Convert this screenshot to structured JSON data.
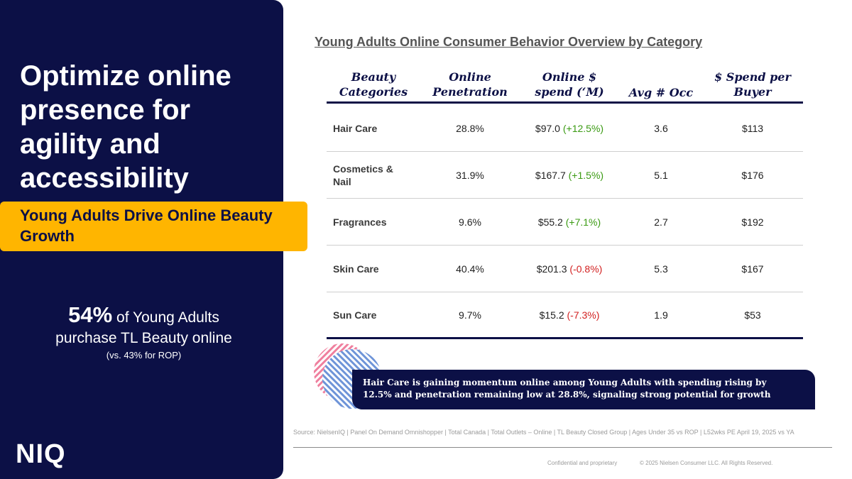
{
  "left_panel": {
    "headline": "Optimize online presence for agility and accessibility",
    "banner": "Young Adults Drive Online Beauty Growth",
    "stat": {
      "number": "54%",
      "line1_rest": " of Young Adults",
      "line2": "purchase TL Beauty online",
      "note": "(vs. 43% for ROP)"
    },
    "logo": "NIQ"
  },
  "table": {
    "title": "Young Adults Online Consumer Behavior Overview by Category",
    "headers": [
      "Beauty Categories",
      "Online Penetration",
      "Online $ spend (‘M)",
      "Avg # Occ",
      "$ Spend per Buyer"
    ],
    "rows": [
      {
        "category": "Hair Care",
        "penetration": "28.8%",
        "spend": "$97.0",
        "change": "(+12.5%)",
        "trend": "pos",
        "avg_occ": "3.6",
        "spend_per_buyer": "$113"
      },
      {
        "category": "Cosmetics & Nail",
        "penetration": "31.9%",
        "spend": "$167.7",
        "change": "(+1.5%)",
        "trend": "pos",
        "avg_occ": "5.1",
        "spend_per_buyer": "$176"
      },
      {
        "category": "Fragrances",
        "penetration": "9.6%",
        "spend": "$55.2",
        "change": "(+7.1%)",
        "trend": "pos",
        "avg_occ": "2.7",
        "spend_per_buyer": "$192"
      },
      {
        "category": "Skin Care",
        "penetration": "40.4%",
        "spend": "$201.3",
        "change": "(-0.8%)",
        "trend": "neg",
        "avg_occ": "5.3",
        "spend_per_buyer": "$167"
      },
      {
        "category": "Sun Care",
        "penetration": "9.7%",
        "spend": "$15.2",
        "change": "(-7.3%)",
        "trend": "neg",
        "avg_occ": "1.9",
        "spend_per_buyer": "$53"
      }
    ]
  },
  "callout": {
    "line1": "Hair Care is gaining momentum online among Young Adults with spending rising by",
    "line2": "12.5% and penetration remaining low at 28.8%, signaling strong potential for growth"
  },
  "source": "Source: NielsenIQ | Panel On Demand Omnishopper | Total Canada | Total Outlets – Online | TL Beauty Closed Group | Ages Under 35 vs ROP | L52wks PE April 19, 2025 vs YA",
  "footer": {
    "confidential": "Confidential and proprietary",
    "copyright": "© 2025 Nielsen Consumer LLC. All Rights Reserved."
  },
  "colors": {
    "navy": "#0c1046",
    "yellow": "#ffb500",
    "positive": "#3a9a12",
    "negative": "#d21f1f"
  }
}
